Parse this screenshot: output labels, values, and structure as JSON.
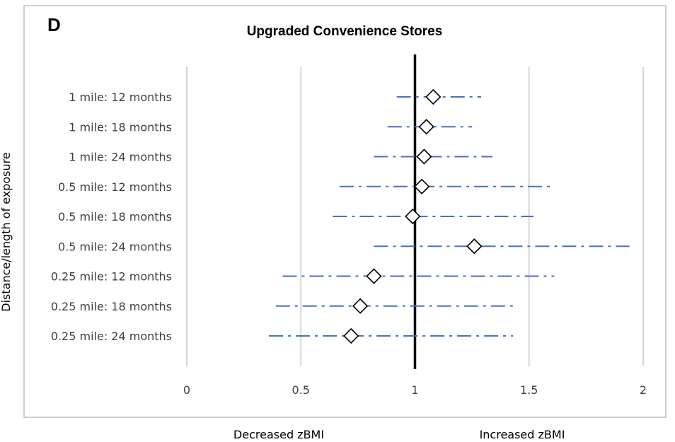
{
  "panel_letter": "D",
  "chart_data": {
    "type": "scatter",
    "title": "Upgraded Convenience Stores",
    "ylabel": "Distance/length of exposure",
    "xlabel": "",
    "xlim": [
      0,
      2
    ],
    "x_ticks": [
      "0",
      "0.5",
      "1",
      "1.5",
      "2"
    ],
    "x_tick_values": [
      0,
      0.5,
      1,
      1.5,
      2
    ],
    "reference_line": 1,
    "categories": [
      "1 mile: 12 months",
      "1 mile: 18 months",
      "1 mile: 24 months",
      "0.5 mile: 12 months",
      "0.5 mile: 18 months",
      "0.5 mile: 24 months",
      "0.25 mile: 12 months",
      "0.25 mile: 18 months",
      "0.25 mile: 24 months"
    ],
    "estimates": [
      1.08,
      1.05,
      1.04,
      1.03,
      0.99,
      1.26,
      0.82,
      0.76,
      0.72
    ],
    "ci_lower": [
      0.92,
      0.88,
      0.82,
      0.67,
      0.64,
      0.82,
      0.42,
      0.39,
      0.36
    ],
    "ci_upper": [
      1.29,
      1.25,
      1.34,
      1.6,
      1.52,
      1.94,
      1.61,
      1.44,
      1.43
    ],
    "direction_labels": {
      "left": "Decreased zBMI",
      "right": "Increased zBMI"
    },
    "grid": true,
    "colors": {
      "ci": "#4472C4",
      "grid": "#BFBFBF",
      "reference": "#000000",
      "marker_fill": "#FFFFFF",
      "marker_stroke": "#000000"
    }
  }
}
